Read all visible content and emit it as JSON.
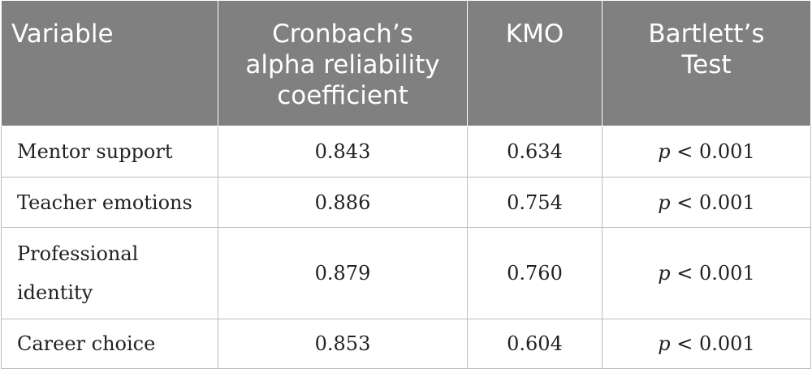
{
  "table": {
    "headers": [
      {
        "lines": [
          "Variable"
        ]
      },
      {
        "lines": [
          "Cronbach’s",
          "alpha reliability",
          "coefficient"
        ]
      },
      {
        "lines": [
          "KMO"
        ]
      },
      {
        "lines": [
          "Bartlett’s",
          "Test"
        ]
      }
    ],
    "rows": [
      {
        "variable_lines": [
          "Mentor support"
        ],
        "alpha": "0.843",
        "kmo": "0.634",
        "bartlett_p": "p",
        "bartlett_rest": " < 0.001"
      },
      {
        "variable_lines": [
          "Teacher emotions"
        ],
        "alpha": "0.886",
        "kmo": "0.754",
        "bartlett_p": "p",
        "bartlett_rest": " < 0.001"
      },
      {
        "variable_lines": [
          "Professional",
          "identity"
        ],
        "alpha": "0.879",
        "kmo": "0.760",
        "bartlett_p": "p",
        "bartlett_rest": " < 0.001"
      },
      {
        "variable_lines": [
          "Career choice"
        ],
        "alpha": "0.853",
        "kmo": "0.604",
        "bartlett_p": "p",
        "bartlett_rest": " < 0.001"
      }
    ]
  }
}
